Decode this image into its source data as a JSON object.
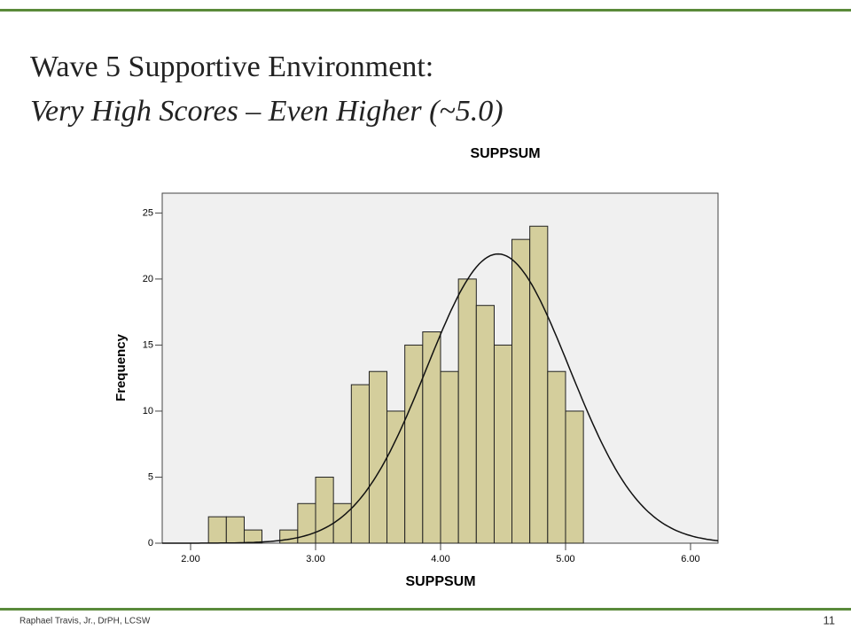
{
  "slide": {
    "title": "Wave 5 Supportive Environment:",
    "subtitle": "Very High Scores – Even Higher (~5.0)",
    "footer": "Raphael Travis, Jr., DrPH, LCSW",
    "page_number": 11
  },
  "chart_data": {
    "type": "histogram",
    "title": "SUPPSUM",
    "x_label": "SUPPSUM",
    "y_label": "Frequency",
    "bins": [
      2.143,
      2.286,
      2.429,
      2.571,
      2.714,
      2.857,
      3,
      3.143,
      3.286,
      3.429,
      3.571,
      3.714,
      3.857,
      4,
      4.143,
      4.286,
      4.429,
      4.571,
      4.714,
      4.857,
      5,
      5.143
    ],
    "values": [
      2,
      2,
      1,
      0,
      1,
      3,
      5,
      3,
      12,
      13,
      10,
      15,
      16,
      13,
      20,
      18,
      15,
      23,
      24,
      13,
      10
    ],
    "color": "#d4ce9c",
    "normal_curve": {
      "mean": 4.46,
      "sd": 0.57
    },
    "xlim": [
      1.773,
      6.22
    ],
    "ylim": [
      0,
      26.5
    ],
    "xticks": [
      {
        "value": 2,
        "label": "2.00"
      },
      {
        "value": 3,
        "label": "3.00"
      },
      {
        "value": 4,
        "label": "4.00"
      },
      {
        "value": 5,
        "label": "5.00"
      },
      {
        "value": 6,
        "label": "6.00"
      }
    ],
    "yticks": [
      0,
      5,
      10,
      15,
      20,
      25
    ]
  }
}
